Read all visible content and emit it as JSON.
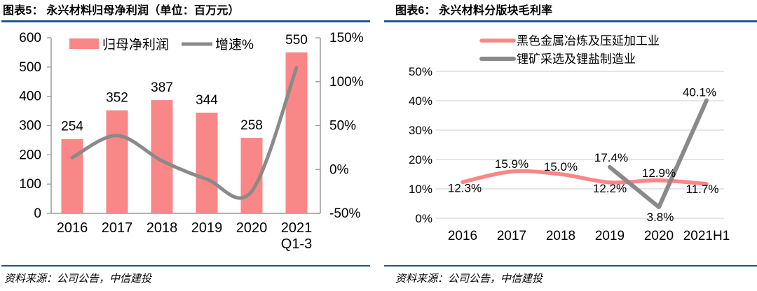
{
  "figures": [
    {
      "title": "图表5： 永兴材料归母净利润（单位：百万元）",
      "source": "资料来源：公司公告，中信建投"
    },
    {
      "title": "图表6： 永兴材料分版块毛利率",
      "source": "资料来源：公司公告，中信建投"
    }
  ],
  "colors": {
    "pink": "#FA8787",
    "gray": "#8A8A8A",
    "rule_blue": "#1A5A90",
    "axis_gray": "#999999",
    "grid_gray": "#D8D8D8",
    "text": "#000000"
  },
  "chart_data": [
    {
      "type": "bar",
      "subtype": "combo-bar-line",
      "title": "永兴材料归母净利润（单位：百万元）",
      "categories": [
        "2016",
        "2017",
        "2018",
        "2019",
        "2020",
        "2021 Q1-3"
      ],
      "categories_display": [
        [
          "2016"
        ],
        [
          "2017"
        ],
        [
          "2018"
        ],
        [
          "2019"
        ],
        [
          "2020"
        ],
        [
          "2021",
          "Q1-3"
        ]
      ],
      "series": [
        {
          "name": "归母净利润",
          "type": "bar",
          "axis": "left",
          "values": [
            254,
            352,
            387,
            344,
            258,
            550
          ],
          "labels": [
            "254",
            "352",
            "387",
            "344",
            "258",
            "550"
          ]
        },
        {
          "name": "增速%",
          "type": "line",
          "axis": "right",
          "values": [
            13.4,
            38.6,
            9.9,
            -11.1,
            -25.0,
            116.0
          ]
        }
      ],
      "left_axis": {
        "min": 0,
        "max": 600,
        "step": 100,
        "tick_labels": [
          "600",
          "500",
          "400",
          "300",
          "200",
          "100",
          "0"
        ]
      },
      "right_axis": {
        "min": -50,
        "max": 150,
        "step": 50,
        "tick_labels": [
          "150%",
          "100%",
          "50%",
          "0%",
          "-50%"
        ]
      },
      "legend_position": "top",
      "grid": false
    },
    {
      "type": "line",
      "title": "永兴材料分版块毛利率",
      "categories": [
        "2016",
        "2017",
        "2018",
        "2019",
        "2020",
        "2021H1"
      ],
      "series": [
        {
          "name": "黑色金属冶炼及压延加工业",
          "values": [
            12.3,
            15.9,
            15.0,
            12.2,
            12.9,
            11.7
          ],
          "labels": [
            "12.3%",
            "15.9%",
            "15.0%",
            "12.2%",
            "12.9%",
            "11.7%"
          ]
        },
        {
          "name": "锂矿采选及锂盐制造业",
          "values": [
            null,
            null,
            null,
            17.4,
            3.8,
            40.1
          ],
          "labels": [
            null,
            null,
            null,
            "17.4%",
            "3.8%",
            "40.1%"
          ]
        }
      ],
      "y_axis": {
        "min": 0,
        "max": 50,
        "step": 10,
        "tick_labels": [
          "50%",
          "40%",
          "30%",
          "20%",
          "10%",
          "0%"
        ]
      },
      "legend_position": "top",
      "grid": true
    }
  ]
}
